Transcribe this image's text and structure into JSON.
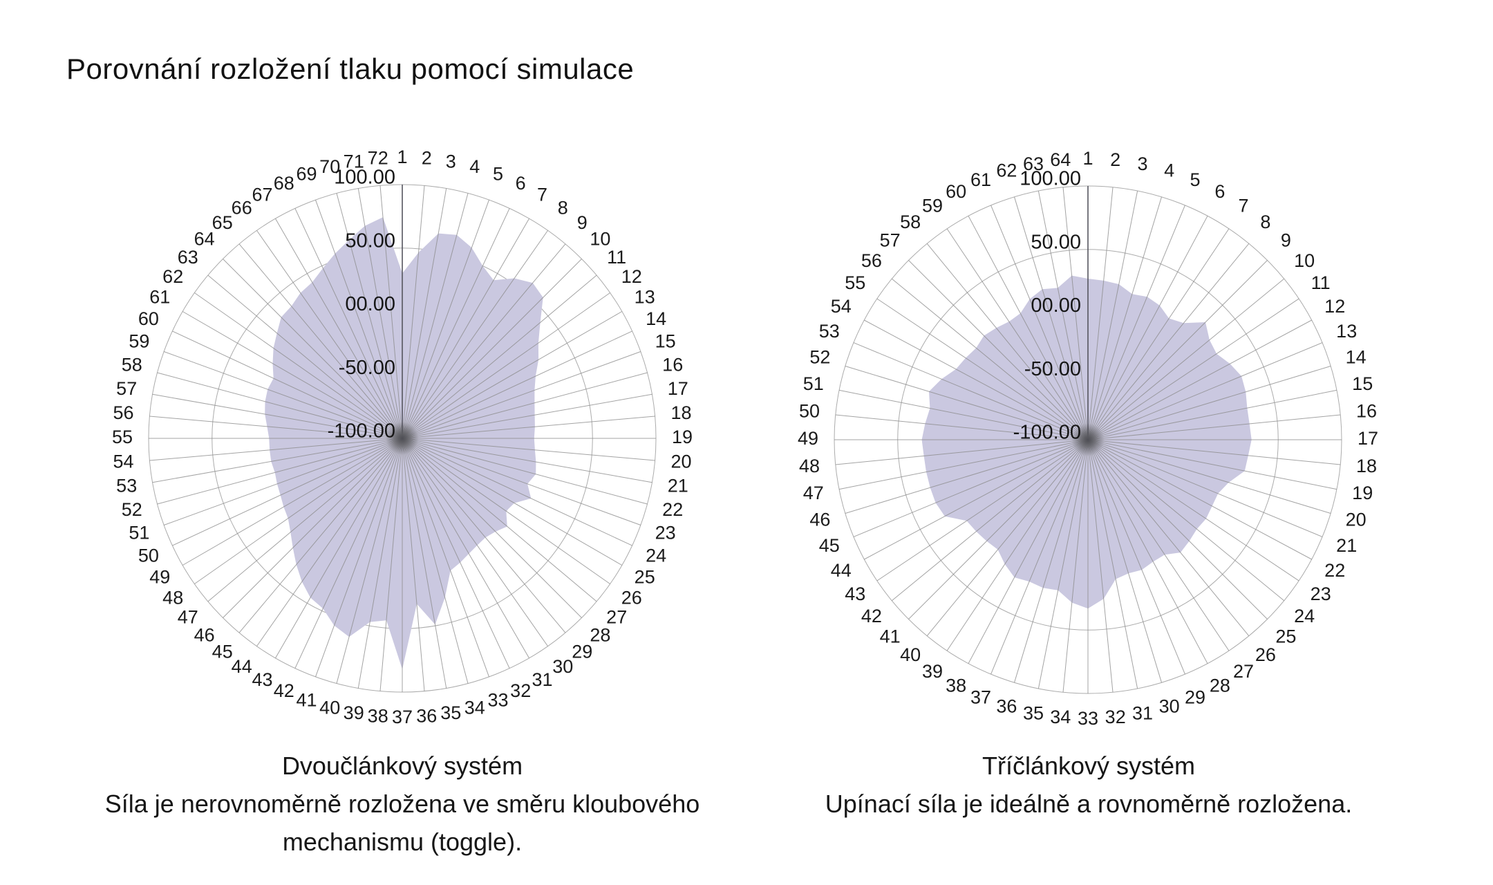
{
  "page": {
    "title": "Porovnání rozložení tlaku pomocí simulace",
    "background": "#ffffff"
  },
  "style": {
    "area_fill": "#cac8e0",
    "grid_ring_color": "#ababab",
    "spoke_color": "#8c8c8c",
    "top_axis_color": "#55555e",
    "center_shadow_color": "#44444c",
    "label_color": "#1b1b1b",
    "tick_label_color": "#161616"
  },
  "chart_data": [
    {
      "type": "radar-area",
      "position": "left",
      "title": "Dvoučlánkový systém",
      "caption_lines": [
        "Dvoučlánkový systém",
        "Síla je nerovnoměrně rozložena ve směru kloubového",
        "mechanismu (toggle)."
      ],
      "spokes": 72,
      "angle_step_deg": 5,
      "grid": true,
      "legend": "none",
      "categories": [
        "1",
        "2",
        "3",
        "4",
        "5",
        "6",
        "7",
        "8",
        "9",
        "10",
        "11",
        "12",
        "13",
        "14",
        "15",
        "16",
        "17",
        "18",
        "19",
        "20",
        "21",
        "22",
        "23",
        "24",
        "25",
        "26",
        "27",
        "28",
        "29",
        "30",
        "31",
        "32",
        "33",
        "34",
        "35",
        "36",
        "37",
        "38",
        "39",
        "40",
        "41",
        "42",
        "43",
        "44",
        "45",
        "46",
        "47",
        "48",
        "49",
        "50",
        "51",
        "52",
        "53",
        "54",
        "55",
        "56",
        "57",
        "58",
        "59",
        "60",
        "61",
        "62",
        "63",
        "64",
        "65",
        "66",
        "67",
        "68",
        "69",
        "70",
        "71",
        "72"
      ],
      "values": [
        30,
        47,
        64,
        66,
        60,
        50,
        44,
        54,
        60,
        57,
        42,
        31,
        24,
        16,
        11,
        8,
        6,
        5,
        4,
        5,
        7,
        9,
        5,
        12,
        2,
        0,
        8,
        4,
        2,
        3,
        5,
        8,
        11,
        30,
        49,
        31,
        82,
        44,
        47,
        62,
        57,
        48,
        45,
        38,
        30,
        22,
        15,
        10,
        8,
        6,
        5,
        4,
        5,
        5,
        5,
        7,
        10,
        12,
        13,
        12,
        18,
        24,
        29,
        35,
        36,
        40,
        42,
        48,
        55,
        62,
        70,
        75
      ],
      "radial_axis": {
        "min": -100,
        "max": 100,
        "ticks": [
          {
            "label": "100.00",
            "value": 100
          },
          {
            "label": "50.00",
            "value": 50
          },
          {
            "label": "00.00",
            "value": 0
          },
          {
            "label": "-50.00",
            "value": -50
          },
          {
            "label": "-100.00",
            "value": -100
          }
        ]
      }
    },
    {
      "type": "radar-area",
      "position": "right",
      "title": "Tříčlánkový systém",
      "caption_lines": [
        "Tříčlánkový systém",
        "Upínací síla je ideálně a rovnoměrně rozložena."
      ],
      "spokes": 64,
      "angle_step_deg": 5.625,
      "grid": true,
      "legend": "none",
      "categories": [
        "1",
        "2",
        "3",
        "4",
        "5",
        "6",
        "7",
        "8",
        "9",
        "10",
        "11",
        "12",
        "13",
        "14",
        "15",
        "16",
        "17",
        "18",
        "19",
        "20",
        "21",
        "22",
        "23",
        "24",
        "25",
        "26",
        "27",
        "28",
        "29",
        "30",
        "31",
        "32",
        "33",
        "34",
        "35",
        "36",
        "37",
        "38",
        "39",
        "40",
        "41",
        "42",
        "43",
        "44",
        "45",
        "46",
        "47",
        "48",
        "49",
        "50",
        "51",
        "52",
        "53",
        "54",
        "55",
        "56",
        "57",
        "58",
        "59",
        "60",
        "61",
        "62",
        "63",
        "64"
      ],
      "values": [
        27,
        26,
        25,
        20,
        22,
        20,
        15,
        19,
        31,
        24,
        22,
        27,
        31,
        30,
        28,
        28,
        29,
        27,
        26,
        16,
        11,
        11,
        12,
        11,
        13,
        15,
        9,
        9,
        11,
        10,
        12,
        26,
        33,
        29,
        21,
        22,
        21,
        23,
        18,
        12,
        13,
        14,
        15,
        28,
        30,
        30,
        30,
        30,
        31,
        29,
        27,
        31,
        25,
        18,
        16,
        14,
        16,
        14,
        12,
        13,
        20,
        24,
        22,
        30
      ],
      "radial_axis": {
        "min": -100,
        "max": 100,
        "ticks": [
          {
            "label": "100.00",
            "value": 100
          },
          {
            "label": "50.00",
            "value": 50
          },
          {
            "label": "00.00",
            "value": 0
          },
          {
            "label": "-50.00",
            "value": -50
          },
          {
            "label": "-100.00",
            "value": -100
          }
        ]
      }
    }
  ]
}
